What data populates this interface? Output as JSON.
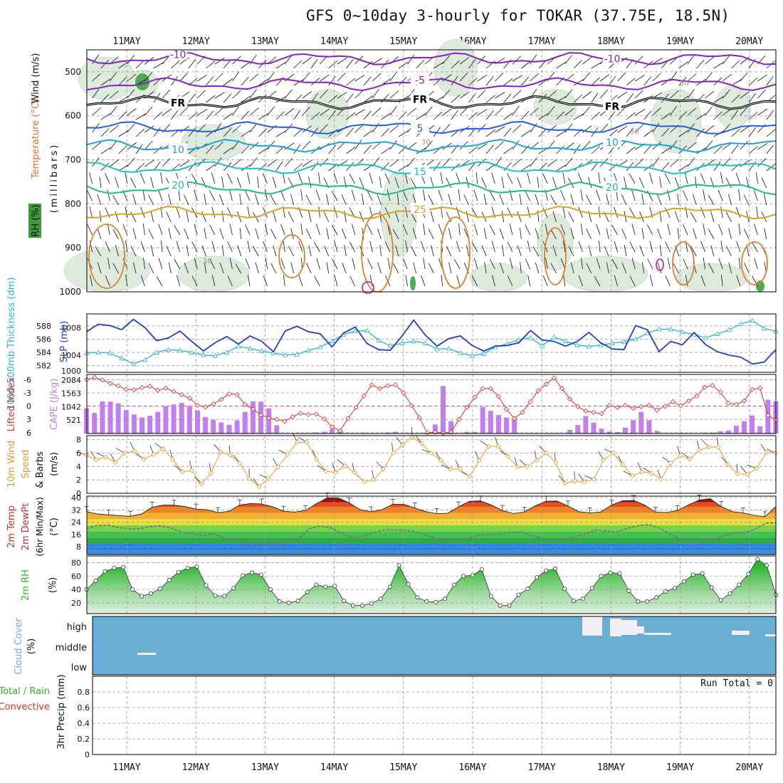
{
  "title": "GFS 0~10day 3-hourly for TOKAR (37.75E, 18.5N)",
  "dates": [
    "11MAY",
    "12MAY",
    "13MAY",
    "14MAY",
    "15MAY",
    "16MAY",
    "17MAY",
    "18MAY",
    "19MAY",
    "20MAY"
  ],
  "colors": {
    "grid": "#9a9a9a",
    "temp_contour": "#8a1fc6",
    "freezing": "#000000",
    "rh_fill": "#dcebdc",
    "slp": "#1f3fd0",
    "thickness": "#2ab7c5",
    "lifted_index": "#d93030",
    "cape": "#c07ef0",
    "wind_speed": "#e69a2e",
    "cloud_bg": "#6aaed6",
    "rh2m": "#22c422",
    "dewpt": "#777777"
  },
  "chart_data": [
    {
      "type": "heatmap",
      "panel": "upper-air",
      "ylabel_parts": [
        "RH (%)",
        "Temperature (°C)",
        "Wind (m/s)",
        "(millibars)"
      ],
      "y_ticks": [
        "500",
        "600",
        "700",
        "800",
        "900",
        "1000"
      ],
      "ylim": [
        450,
        1000
      ],
      "temperature_contours": [
        {
          "label": "-10",
          "pressure": 470
        },
        {
          "label": "-5",
          "pressure": 528
        },
        {
          "label": "FR",
          "pressure": 570
        },
        {
          "label": "5",
          "pressure": 627
        },
        {
          "label": "10",
          "pressure": 668
        },
        {
          "label": "15",
          "pressure": 718
        },
        {
          "label": "20",
          "pressure": 765
        },
        {
          "label": "25",
          "pressure": 820
        }
      ],
      "rh_labels": [
        "30",
        "30",
        "30",
        "30"
      ]
    },
    {
      "type": "line",
      "panel": "slp-thickness",
      "ylabel_left": "1000-500mb Thickness (dm)",
      "ylabel_right": "SLP (mb)",
      "left_ticks": [
        "582",
        "584",
        "586",
        "588"
      ],
      "right_ticks": [
        "1004",
        "1008"
      ],
      "extra_tick": "1000",
      "series": [
        {
          "name": "SLP (mb)",
          "axis": "right",
          "values": [
            1007.4,
            1008.5,
            1008.3,
            1007.7,
            1009.2,
            1008.0,
            1006.1,
            1006.5,
            1007.5,
            1006.0,
            1004.6,
            1005.8,
            1006.7,
            1005.6,
            1006.8,
            1006.0,
            1004.5,
            1007.5,
            1008.2,
            1007.4,
            1007.1,
            1005.2,
            1007.2,
            1008.1,
            1005.7,
            1004.8,
            1004.7,
            1006.8,
            1009.1,
            1006.9,
            1005.3,
            1006.4,
            1006.8,
            1005.4,
            1004.6,
            1005.3,
            1005.4,
            1005.8,
            1007.6,
            1006.2,
            1006.0,
            1005.3,
            1006.0,
            1007.3,
            1005.8,
            1004.9,
            1004.8,
            1008.3,
            1007.7,
            1004.5,
            1006.0,
            1005.5,
            1007.3,
            1005.5,
            1004.5,
            1004.0,
            1003.7,
            1002.7,
            1003.0,
            1004.8
          ]
        },
        {
          "name": "1000-500mb Thickness (dm)",
          "axis": "left",
          "values": [
            583.9,
            584.0,
            583.9,
            583.1,
            582.3,
            582.9,
            584.0,
            584.4,
            584.3,
            584.0,
            583.6,
            583.5,
            584.0,
            584.9,
            584.6,
            584.2,
            583.9,
            583.6,
            583.7,
            584.3,
            584.8,
            585.7,
            586.7,
            587.2,
            587.3,
            585.8,
            585.0,
            585.4,
            585.7,
            585.4,
            584.5,
            584.6,
            583.9,
            583.5,
            583.8,
            584.8,
            585.3,
            585.9,
            586.2,
            585.0,
            586.3,
            585.7,
            585.1,
            584.9,
            585.1,
            585.4,
            585.6,
            586.0,
            586.9,
            587.5,
            587.5,
            587.1,
            586.7,
            586.2,
            586.8,
            587.4,
            588.3,
            588.8,
            587.6,
            587.2
          ]
        }
      ]
    },
    {
      "type": "bar",
      "panel": "cape-li",
      "ylabel_left": "Lifted Index",
      "ylabel_right": "CAPE (J/kg)",
      "left_ticks": [
        "-6",
        "-3",
        "0",
        "3",
        "6"
      ],
      "right_ticks": [
        "2084",
        "1563",
        "1042",
        "521"
      ],
      "series": [
        {
          "name": "Lifted Index",
          "axis": "left",
          "values": [
            -6.0,
            -6.5,
            -5.9,
            -5.2,
            -4.6,
            -3.8,
            -3.7,
            -4.2,
            -4.5,
            -3.6,
            -4.1,
            -3.3,
            -2.6,
            -1.8,
            -0.2,
            0.2,
            -0.5,
            -1.5,
            -2.8,
            -2.6,
            -0.4,
            0.7,
            2.0,
            2.7,
            3.0,
            3.4,
            2.4,
            1.6,
            1.9,
            1.8,
            2.9,
            4.7,
            5.6,
            2.8,
            0.3,
            -2.3,
            -4.8,
            -4.0,
            -4.6,
            -4.8,
            -3.0,
            -0.2,
            2.6,
            6.0,
            5.9,
            6.1,
            5.9,
            3.0,
            0.3,
            -2.0,
            -4.0,
            -4.0,
            -2.2,
            0.7,
            2.8,
            1.4,
            -1.0,
            -3.5,
            -5.0,
            -6.4,
            -4.0,
            -1.6,
            0.1,
            1.1,
            1.4,
            1.7,
            -0.2,
            0.3,
            -0.2,
            0.5,
            0.1,
            -0.2,
            0.9,
            0.0,
            -1.0,
            -0.1,
            -1.2,
            -2.3,
            -4.3,
            -4.7,
            -3.2,
            -0.7,
            -0.4,
            -1.2,
            -3.8,
            -4.1,
            2.1,
            3.1
          ]
        },
        {
          "name": "CAPE (J/kg)",
          "axis": "right",
          "values": [
            980,
            800,
            1250,
            1240,
            1170,
            910,
            740,
            620,
            690,
            840,
            1060,
            1130,
            1190,
            1070,
            900,
            640,
            530,
            430,
            340,
            510,
            840,
            1250,
            1240,
            980,
            320,
            0,
            0,
            0,
            0,
            40,
            70,
            180,
            120,
            0,
            0,
            20,
            0,
            0,
            40,
            70,
            0,
            0,
            0,
            0,
            350,
            1850,
            480,
            10,
            70,
            60,
            1030,
            880,
            720,
            620,
            530,
            0,
            0,
            0,
            0,
            0,
            0,
            140,
            330,
            680,
            420,
            190,
            80,
            60,
            230,
            520,
            840,
            520,
            100,
            10,
            0,
            30,
            10,
            10,
            30,
            30,
            90,
            120,
            300,
            480,
            700,
            280,
            1310,
            1250
          ]
        }
      ]
    },
    {
      "type": "line",
      "panel": "wind",
      "ylabel_parts": [
        "10m Wind",
        "Speed",
        "& Barbs",
        "(m/s)"
      ],
      "y_ticks": [
        "0",
        "2",
        "4",
        "6",
        "8"
      ],
      "ylim": [
        0,
        8.6
      ],
      "series": [
        {
          "name": "10m Wind Speed",
          "values": [
            5.7,
            5.0,
            5.4,
            4.6,
            6.0,
            6.3,
            5.1,
            5.8,
            6.6,
            5.1,
            3.2,
            3.4,
            1.4,
            3.0,
            6.2,
            5.7,
            4.5,
            2.2,
            1.0,
            2.2,
            3.9,
            5.8,
            7.6,
            7.6,
            5.1,
            3.3,
            3.1,
            4.1,
            3.1,
            1.7,
            2.0,
            3.6,
            6.0,
            7.2,
            8.4,
            7.4,
            6.0,
            4.9,
            3.6,
            3.6,
            2.5,
            4.9,
            7.0,
            7.0,
            5.5,
            3.9,
            4.0,
            4.9,
            6.0,
            4.6,
            1.5,
            1.8,
            1.7,
            2.1,
            5.0,
            6.0,
            4.3,
            2.6,
            3.2,
            3.0,
            2.1,
            4.5,
            5.6,
            5.1,
            6.4,
            6.9,
            6.9,
            4.3,
            2.9,
            2.8,
            3.7,
            6.1,
            6.0
          ]
        }
      ]
    },
    {
      "type": "area",
      "panel": "temperature",
      "ylabel_parts": [
        "2m Temp",
        "2m DewPt",
        "(6hr Min/Max)",
        "(°C)"
      ],
      "y_ticks": [
        "8",
        "16",
        "24",
        "32",
        "40"
      ],
      "ylim": [
        3,
        41
      ],
      "series": [
        {
          "name": "2m Temp",
          "values": [
            31.0,
            29.3,
            28.8,
            28.3,
            27.9,
            29.3,
            33.8,
            35.1,
            35.1,
            34.2,
            32.6,
            32.2,
            30.3,
            31.1,
            35.2,
            36.2,
            35.9,
            34.1,
            31.2,
            30.6,
            31.6,
            36.1,
            39.9,
            39.9,
            36.6,
            32.2,
            30.8,
            32.2,
            35.7,
            35.6,
            33.3,
            30.9,
            29.6,
            29.9,
            34.0,
            37.6,
            37.9,
            35.2,
            31.7,
            29.7,
            30.6,
            34.7,
            37.7,
            37.8,
            34.6,
            30.9,
            30.1,
            30.7,
            35.2,
            38.0,
            38.2,
            35.2,
            30.6,
            30.4,
            31.6,
            35.2,
            38.5,
            39.3,
            34.3,
            31.0,
            30.1,
            28.5,
            27.6,
            34.2
          ]
        },
        {
          "name": "2m DewPt",
          "values": [
            19.8,
            21.9,
            22.1,
            20.6,
            19.6,
            19.7,
            21.2,
            21.7,
            20.2,
            17.6,
            16.7,
            15.3,
            16.6,
            13.7,
            12.6,
            11.3,
            10.2,
            10.0,
            10.6,
            12.0,
            13.3,
            19.8,
            21.5,
            20.4,
            17.0,
            14.0,
            14.7,
            17.2,
            18.9,
            19.0,
            18.7,
            17.9,
            15.6,
            13.4,
            11.6,
            12.4,
            13.6,
            15.5,
            16.0,
            16.1,
            17.6,
            17.6,
            15.4,
            13.7,
            12.0,
            13.0,
            14.5,
            16.3,
            18.9,
            18.4,
            17.7,
            20.0,
            21.7,
            22.4,
            20.2,
            16.5,
            13.0,
            12.3,
            11.2,
            12.6,
            14.8,
            17.3,
            17.1,
            19.3,
            23.3,
            23.6
          ]
        }
      ]
    },
    {
      "type": "area",
      "panel": "rh2m",
      "ylabel_parts": [
        "2m RH",
        "(%)"
      ],
      "y_ticks": [
        "20",
        "40",
        "60",
        "80"
      ],
      "ylim": [
        4,
        90
      ],
      "series": [
        {
          "name": "2m RH",
          "values": [
            40,
            53,
            67,
            72,
            73,
            40,
            30,
            34,
            41,
            54,
            66,
            72,
            74,
            46,
            31,
            30,
            42,
            61,
            65,
            62,
            40,
            22,
            20,
            23,
            36,
            47,
            44,
            45,
            23,
            16,
            16,
            19,
            26,
            44,
            76,
            48,
            28,
            22,
            21,
            26,
            47,
            60,
            61,
            70,
            30,
            16,
            16,
            32,
            41,
            58,
            68,
            71,
            41,
            23,
            26,
            42,
            60,
            65,
            64,
            38,
            22,
            22,
            28,
            37,
            42,
            52,
            62,
            64,
            43,
            24,
            34,
            47,
            63,
            85,
            76,
            32
          ]
        }
      ]
    },
    {
      "type": "bar",
      "panel": "cloud",
      "ylabel_parts": [
        "Cloud Cover",
        "(%)"
      ],
      "y_ticks": [
        "high",
        "middle",
        "low"
      ]
    },
    {
      "type": "bar",
      "panel": "precip",
      "ylabel_parts": [
        "Total / Rain",
        "Convective",
        "3hr Precip (mm)"
      ],
      "y_ticks": [
        "0",
        "0.2",
        "0.4",
        "0.6",
        "0.8"
      ],
      "ylim": [
        0,
        1.0
      ],
      "run_total": "Run Total = 0",
      "series": []
    }
  ]
}
